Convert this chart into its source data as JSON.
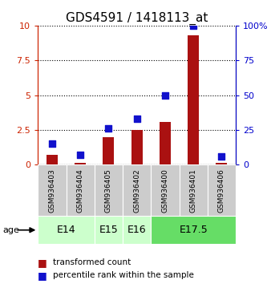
{
  "title": "GDS4591 / 1418113_at",
  "samples": [
    "GSM936403",
    "GSM936404",
    "GSM936405",
    "GSM936402",
    "GSM936400",
    "GSM936401",
    "GSM936406"
  ],
  "transformed_count": [
    0.7,
    0.15,
    2.0,
    2.5,
    3.1,
    9.3,
    0.15
  ],
  "percentile_rank": [
    15.0,
    7.0,
    26.0,
    33.0,
    50.0,
    100.0,
    6.0
  ],
  "age_groups": [
    {
      "label": "E14",
      "start": 0,
      "end": 2,
      "color": "#ccffcc"
    },
    {
      "label": "E15",
      "start": 2,
      "end": 3,
      "color": "#ccffcc"
    },
    {
      "label": "E16",
      "start": 3,
      "end": 4,
      "color": "#ccffcc"
    },
    {
      "label": "E17.5",
      "start": 4,
      "end": 7,
      "color": "#66dd66"
    }
  ],
  "left_ylim": [
    0,
    10
  ],
  "right_ylim": [
    0,
    100
  ],
  "left_yticks": [
    0,
    2.5,
    5,
    7.5,
    10
  ],
  "right_yticks": [
    0,
    25,
    50,
    75,
    100
  ],
  "left_yticklabels": [
    "0",
    "2.5",
    "5",
    "7.5",
    "10"
  ],
  "right_yticklabels": [
    "0",
    "25",
    "50",
    "75",
    "100%"
  ],
  "bar_color": "#aa1111",
  "dot_color": "#1111cc",
  "grid_color": "#000000",
  "bg_color": "#ffffff",
  "left_axis_color": "#cc2200",
  "right_axis_color": "#0000cc",
  "bar_width": 0.4,
  "dot_size": 35,
  "age_label_fontsize": 9,
  "sample_fontsize": 6.5,
  "title_fontsize": 11
}
